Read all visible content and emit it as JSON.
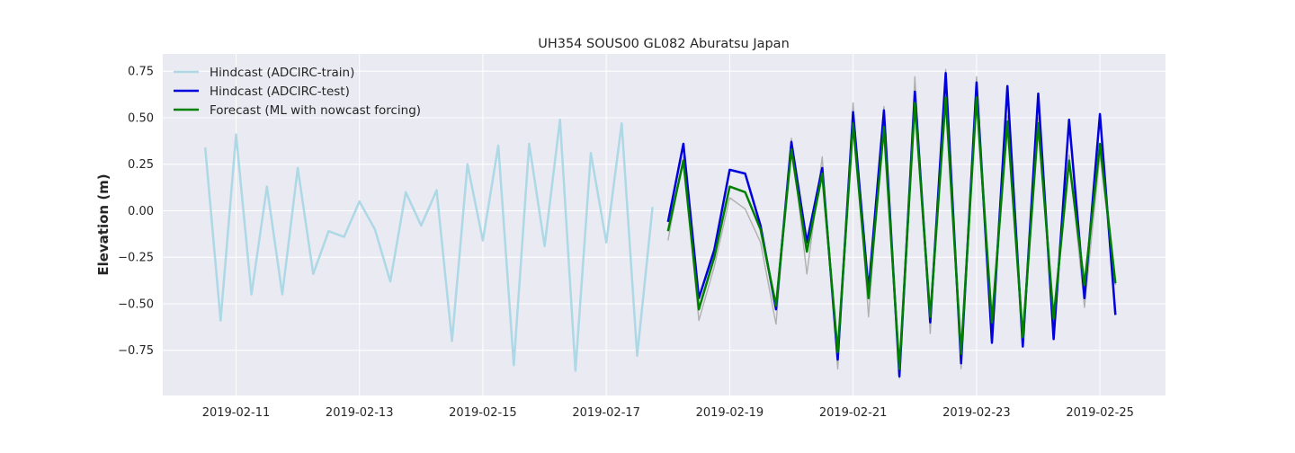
{
  "chart_data": {
    "type": "line",
    "title": "UH354 SOUS00 GL082 Aburatsu Japan",
    "xlabel": "",
    "ylabel": "Elevation (m)",
    "x_axis": "date",
    "xlim": [
      "2019-02-09 19:30",
      "2019-02-26 01:30"
    ],
    "ylim": [
      -0.993,
      0.843
    ],
    "x_ticks": [
      "2019-02-11",
      "2019-02-13",
      "2019-02-15",
      "2019-02-17",
      "2019-02-19",
      "2019-02-21",
      "2019-02-23",
      "2019-02-25"
    ],
    "y_ticks": [
      0.75,
      0.5,
      0.25,
      0.0,
      -0.25,
      -0.5,
      -0.75
    ],
    "y_tick_labels": [
      "0.75",
      "0.50",
      "0.25",
      "0.00",
      "−0.25",
      "−0.50",
      "−0.75"
    ],
    "grid": true,
    "legend_position": "top-left",
    "colors": {
      "background": "#eaeaf2",
      "grid": "#ffffff",
      "observed": "#b0b0b0"
    },
    "x_times": [
      "2019-02-10 12:00",
      "2019-02-10 18:00",
      "2019-02-11 00:00",
      "2019-02-11 06:00",
      "2019-02-11 12:00",
      "2019-02-11 18:00",
      "2019-02-12 00:00",
      "2019-02-12 06:00",
      "2019-02-12 12:00",
      "2019-02-12 18:00",
      "2019-02-13 00:00",
      "2019-02-13 06:00",
      "2019-02-13 12:00",
      "2019-02-13 18:00",
      "2019-02-14 00:00",
      "2019-02-14 06:00",
      "2019-02-14 12:00",
      "2019-02-14 18:00",
      "2019-02-15 00:00",
      "2019-02-15 06:00",
      "2019-02-15 12:00",
      "2019-02-15 18:00",
      "2019-02-16 00:00",
      "2019-02-16 06:00",
      "2019-02-16 12:00",
      "2019-02-16 18:00",
      "2019-02-17 00:00",
      "2019-02-17 06:00",
      "2019-02-17 12:00",
      "2019-02-17 18:00",
      "2019-02-18 00:00",
      "2019-02-18 06:00",
      "2019-02-18 12:00",
      "2019-02-18 18:00",
      "2019-02-19 00:00",
      "2019-02-19 06:00",
      "2019-02-19 12:00",
      "2019-02-19 18:00",
      "2019-02-20 00:00",
      "2019-02-20 06:00",
      "2019-02-20 12:00",
      "2019-02-20 18:00",
      "2019-02-21 00:00",
      "2019-02-21 06:00",
      "2019-02-21 12:00",
      "2019-02-21 18:00",
      "2019-02-22 00:00",
      "2019-02-22 06:00",
      "2019-02-22 12:00",
      "2019-02-22 18:00",
      "2019-02-23 00:00",
      "2019-02-23 06:00",
      "2019-02-23 12:00",
      "2019-02-23 18:00",
      "2019-02-24 00:00",
      "2019-02-24 06:00",
      "2019-02-24 12:00",
      "2019-02-24 18:00",
      "2019-02-25 00:00",
      "2019-02-25 06:00"
    ],
    "series": [
      {
        "name": "",
        "color": "#b0b0b0",
        "start_index": 30,
        "values": [
          -0.16,
          0.29,
          -0.59,
          -0.3,
          0.07,
          0.01,
          -0.17,
          -0.61,
          0.39,
          -0.34,
          0.29,
          -0.85,
          0.58,
          -0.57,
          0.56,
          -0.9,
          0.72,
          -0.66,
          0.76,
          -0.85,
          0.72,
          -0.59,
          0.51,
          -0.7,
          0.5,
          -0.59,
          0.3,
          -0.52,
          0.3,
          -0.4
        ]
      },
      {
        "name": "Hindcast (ADCIRC-train)",
        "color": "#add8e6",
        "start_index": 0,
        "values": [
          0.34,
          -0.59,
          0.41,
          -0.45,
          0.13,
          -0.45,
          0.23,
          -0.34,
          -0.11,
          -0.14,
          0.05,
          -0.1,
          -0.38,
          0.1,
          -0.08,
          0.11,
          -0.7,
          0.25,
          -0.16,
          0.35,
          -0.83,
          0.36,
          -0.19,
          0.49,
          -0.86,
          0.31,
          -0.17,
          0.47,
          -0.78,
          0.02
        ]
      },
      {
        "name": "Hindcast (ADCIRC-test)",
        "color": "#0000dd",
        "start_index": 30,
        "values": [
          -0.06,
          0.36,
          -0.47,
          -0.21,
          0.22,
          0.2,
          -0.08,
          -0.53,
          0.37,
          -0.17,
          0.23,
          -0.8,
          0.53,
          -0.43,
          0.54,
          -0.89,
          0.64,
          -0.6,
          0.74,
          -0.82,
          0.69,
          -0.71,
          0.67,
          -0.73,
          0.63,
          -0.69,
          0.49,
          -0.47,
          0.52,
          -0.56
        ]
      },
      {
        "name": "Forecast (ML with nowcast forcing)",
        "color": "#008000",
        "start_index": 30,
        "values": [
          -0.11,
          0.27,
          -0.53,
          -0.25,
          0.13,
          0.1,
          -0.1,
          -0.51,
          0.33,
          -0.22,
          0.2,
          -0.76,
          0.47,
          -0.47,
          0.45,
          -0.85,
          0.58,
          -0.57,
          0.61,
          -0.77,
          0.61,
          -0.6,
          0.48,
          -0.68,
          0.47,
          -0.58,
          0.27,
          -0.4,
          0.36,
          -0.39
        ]
      }
    ]
  }
}
